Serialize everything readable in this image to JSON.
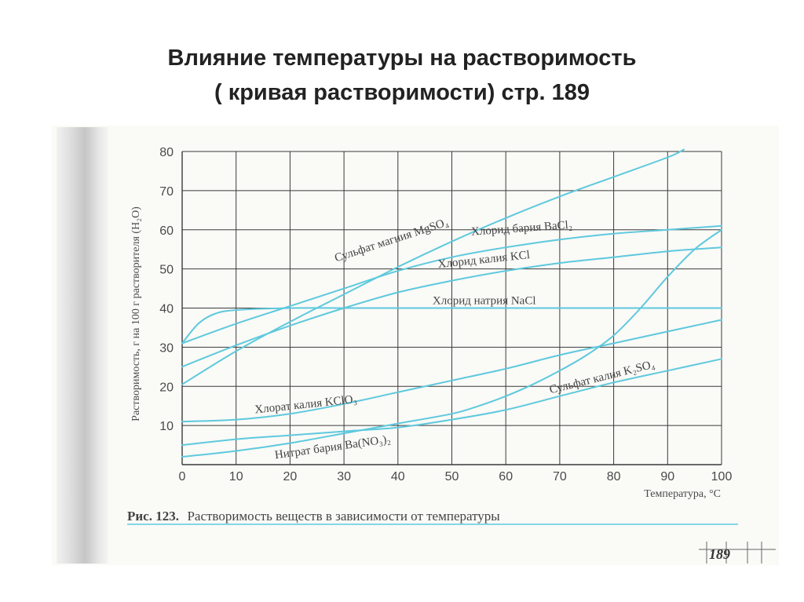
{
  "slide": {
    "title_line1": "Влияние температуры на растворимость",
    "title_line2": "( кривая растворимости) стр. 189"
  },
  "figure": {
    "caption_bold": "Рис. 123.",
    "caption_text": "Растворимость веществ в зависимости от температуры",
    "page_number": "189"
  },
  "colors": {
    "curve": "#5ec9dd",
    "grid": "#3a3a3a",
    "text": "#444444"
  },
  "chart_data": {
    "type": "line",
    "xlabel": "Температура, °С",
    "ylabel": "Растворимость, г на 100 г растворителя (H₂O)",
    "xlim": [
      0,
      100
    ],
    "ylim": [
      0,
      80
    ],
    "xticks": [
      "0",
      "10",
      "20",
      "30",
      "40",
      "50",
      "60",
      "70",
      "80",
      "90",
      "100"
    ],
    "yticks": [
      "10",
      "20",
      "30",
      "40",
      "50",
      "60",
      "70",
      "80"
    ],
    "grid": true,
    "series": [
      {
        "name": "Сульфат магния MgSO4",
        "label": "Сульфат магния MgSO₄",
        "x": [
          0,
          10,
          20,
          30,
          40,
          50,
          60,
          70,
          80,
          90,
          93
        ],
        "y": [
          20.5,
          29,
          36.5,
          43.5,
          50.5,
          57,
          63,
          68.5,
          73.5,
          78.5,
          80.5
        ]
      },
      {
        "name": "Хлорид бария BaCl2",
        "label": "Хлорид бария BaCl₂",
        "x": [
          0,
          10,
          20,
          30,
          40,
          50,
          60,
          70,
          80,
          90,
          100
        ],
        "y": [
          31,
          36,
          40.5,
          45,
          49.5,
          53,
          55.5,
          57.5,
          59,
          60,
          61
        ]
      },
      {
        "name": "Хлорид калия KCl",
        "label": "Хлорид калия KCl",
        "x": [
          0,
          10,
          20,
          30,
          40,
          50,
          60,
          70,
          80,
          90,
          100
        ],
        "y": [
          25,
          30.5,
          35.5,
          40,
          44,
          47,
          49.5,
          51.5,
          53,
          54.5,
          55.5
        ]
      },
      {
        "name": "Хлорид натрия NaCl",
        "label": "Хлорид натрия NaCl",
        "x": [
          0,
          3,
          6,
          10,
          20,
          30,
          40,
          50,
          60,
          70,
          80,
          90,
          100
        ],
        "y": [
          31,
          36,
          38.5,
          39.5,
          40,
          40,
          40,
          40,
          40,
          40,
          40,
          40,
          40
        ]
      },
      {
        "name": "Хлорат калия KClO3",
        "label": "Хлорат калия KClO₃",
        "x": [
          0,
          10,
          20,
          30,
          40,
          50,
          60,
          70,
          80,
          90,
          100
        ],
        "y": [
          11,
          11.5,
          13,
          15.5,
          18.5,
          21.5,
          24.5,
          28,
          31,
          34,
          37
        ]
      },
      {
        "name": "Нитрат бария Ba(NO3)2",
        "label": "Нитрат бария Ba(NO₃)₂",
        "x": [
          0,
          10,
          20,
          30,
          40,
          50,
          60,
          70,
          80,
          90,
          100
        ],
        "y": [
          5,
          6.5,
          7.5,
          8.5,
          9.5,
          11.5,
          14,
          17.5,
          21,
          24,
          27
        ]
      },
      {
        "name": "Сульфат калия K2SO4",
        "label": "Сульфат калия K₂SO₄",
        "x": [
          0,
          10,
          20,
          30,
          40,
          50,
          55,
          60,
          65,
          70,
          75,
          80,
          85,
          90,
          95,
          100
        ],
        "y": [
          2,
          3.5,
          5.5,
          8,
          10.5,
          13,
          15,
          17.5,
          20.5,
          24,
          28,
          33,
          40,
          48,
          55,
          60
        ]
      }
    ]
  }
}
